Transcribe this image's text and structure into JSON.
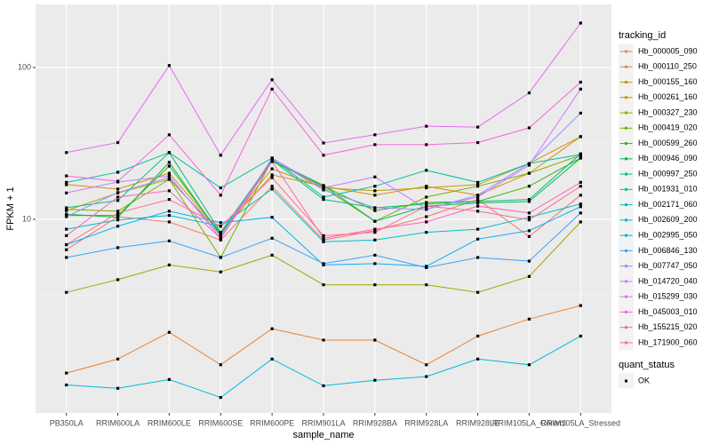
{
  "chart_data": {
    "type": "line",
    "log_y": true,
    "grid": true,
    "legend_position": "right",
    "x_label": "sample_name",
    "y_label": "FPKM + 1",
    "legend_title": "tracking_id",
    "shape_legend": {
      "title": "quant_status",
      "levels": [
        "OK"
      ]
    },
    "point_color": "#000000",
    "categories": [
      "PB350LA",
      "RRIM600LA",
      "RRIM600LE",
      "RRIM600SE",
      "RRIM600PE",
      "RRIM901LA",
      "RRIM928BA",
      "RRIM928LA",
      "RRIM928LE",
      "RRIM105LA_Control",
      "RRIM105LA_Stressed"
    ],
    "ylim": [
      0.53,
      260
    ],
    "yticks": [
      10,
      100
    ],
    "series": [
      {
        "name": "Hb_000005_090",
        "color": "#F8766D",
        "values": [
          6.3,
          10.4,
          9.6,
          7.3,
          16.5,
          7.3,
          8.4,
          10.4,
          13.5,
          7.7,
          14.4
        ]
      },
      {
        "name": "Hb_000110_250",
        "color": "#EA8331",
        "values": [
          0.97,
          1.2,
          1.8,
          1.1,
          1.9,
          1.6,
          1.6,
          1.1,
          1.7,
          2.2,
          2.7
        ]
      },
      {
        "name": "Hb_000155_160",
        "color": "#D89000",
        "values": [
          16.9,
          15.8,
          20.1,
          8.2,
          19.6,
          16.5,
          14.4,
          16.5,
          14.4,
          20.1,
          35
        ]
      },
      {
        "name": "Hb_000261_160",
        "color": "#C09B00",
        "values": [
          11.4,
          14.9,
          18.3,
          8.2,
          21.5,
          16.1,
          15.4,
          16.1,
          16.9,
          23.3,
          35
        ]
      },
      {
        "name": "Hb_000327_230",
        "color": "#A3A500",
        "values": [
          3.3,
          4.0,
          5.0,
          4.5,
          5.8,
          3.7,
          3.7,
          3.7,
          3.3,
          4.2,
          9.6
        ]
      },
      {
        "name": "Hb_000419_020",
        "color": "#7CAE00",
        "values": [
          11.6,
          11.3,
          18.3,
          5.6,
          24.6,
          16.1,
          9.7,
          14,
          16.5,
          20.1,
          26.4
        ]
      },
      {
        "name": "Hb_000599_260",
        "color": "#39B600",
        "values": [
          10.6,
          10.6,
          22.4,
          8,
          24,
          16.5,
          11.4,
          12.9,
          13.1,
          16.5,
          25.3
        ]
      },
      {
        "name": "Hb_000946_090",
        "color": "#00BB4E",
        "values": [
          10.8,
          10.3,
          23.7,
          7.8,
          24.6,
          16.7,
          9.7,
          12.2,
          12.8,
          13.1,
          25.3
        ]
      },
      {
        "name": "Hb_000997_250",
        "color": "#00BF7D",
        "values": [
          11.9,
          13.3,
          27.5,
          8.2,
          24.6,
          13.5,
          11.9,
          12.6,
          13.1,
          13.5,
          27
        ]
      },
      {
        "name": "Hb_001931_010",
        "color": "#00C1A3",
        "values": [
          17.5,
          20.4,
          27.5,
          16.1,
          25.3,
          14,
          16.5,
          21,
          17.5,
          23.3,
          26.7
        ]
      },
      {
        "name": "Hb_002171_060",
        "color": "#00BFC4",
        "values": [
          8.6,
          9.9,
          10.6,
          9,
          15.8,
          7.1,
          7.3,
          8.2,
          8.6,
          10.3,
          12.6
        ]
      },
      {
        "name": "Hb_002609_200",
        "color": "#00BAE0",
        "values": [
          0.81,
          0.77,
          0.88,
          0.67,
          1.2,
          0.8,
          0.87,
          0.92,
          1.2,
          1.1,
          1.7
        ]
      },
      {
        "name": "Hb_002995_050",
        "color": "#00B0F6",
        "values": [
          6.8,
          9,
          11.3,
          9.5,
          10.3,
          5,
          5.1,
          4.9,
          7.4,
          8.4,
          12.1
        ]
      },
      {
        "name": "Hb_006846_130",
        "color": "#35A2FF",
        "values": [
          5.6,
          6.5,
          7.2,
          5.6,
          7.5,
          5.1,
          5.8,
          4.8,
          5.6,
          5.3,
          11
        ]
      },
      {
        "name": "Hb_007747_050",
        "color": "#9590FF",
        "values": [
          10.4,
          15,
          18.8,
          7.8,
          25,
          15.6,
          11.9,
          11.6,
          14.4,
          23.3,
          50
        ]
      },
      {
        "name": "Hb_014720_040",
        "color": "#C77CFF",
        "values": [
          14.9,
          17.6,
          19.3,
          7.5,
          25.3,
          16.1,
          19,
          11.7,
          14,
          22.7,
          72
        ]
      },
      {
        "name": "Hb_015299_030",
        "color": "#E76BF3",
        "values": [
          27.5,
          32,
          103,
          26.4,
          83,
          31.8,
          36,
          41,
          40.5,
          68,
          196
        ]
      },
      {
        "name": "Hb_045003_010",
        "color": "#FA62DB",
        "values": [
          19.3,
          17.8,
          36,
          14.4,
          72,
          26.4,
          31,
          31,
          32,
          40,
          80
        ]
      },
      {
        "name": "Hb_155215_020",
        "color": "#FF62BC",
        "values": [
          7.8,
          14,
          15.4,
          7.5,
          24,
          7.5,
          8.6,
          9.6,
          12.2,
          11,
          17.5
        ]
      },
      {
        "name": "Hb_171900_060",
        "color": "#FF6C91",
        "values": [
          6.8,
          11,
          13.5,
          9,
          18.8,
          7.8,
          8.2,
          12.2,
          11.3,
          9.9,
          16.5
        ]
      }
    ]
  }
}
